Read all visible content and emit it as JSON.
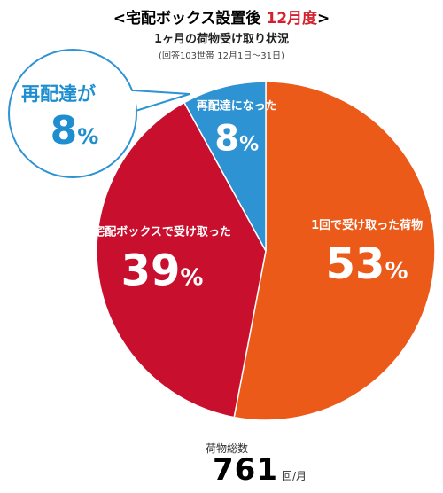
{
  "header": {
    "title": "<宅配ボックス設置後 12月度>",
    "subtitle": "1ヶ月の荷物受け取り状況",
    "note": "(回答103世帯 12月1日〜31日)"
  },
  "callout": {
    "line1": "再配達が",
    "value": "8",
    "unit": "%"
  },
  "total": {
    "label": "荷物総数",
    "value": "761",
    "unit": "回/月"
  },
  "colors": {
    "accent": "#d4202e",
    "callout": "#1f8ed0"
  },
  "chart_data": {
    "type": "pie",
    "title": "<宅配ボックス設置後 12月度>",
    "slices": [
      {
        "label": "1回で受け取った荷物",
        "value": 53,
        "color": "#ec5a1a"
      },
      {
        "label": "宅配ボックスで受け取った",
        "value": 39,
        "color": "#c8102e"
      },
      {
        "label": "再配達になった",
        "value": 8,
        "color": "#2e93d3"
      }
    ],
    "unit": "%"
  }
}
